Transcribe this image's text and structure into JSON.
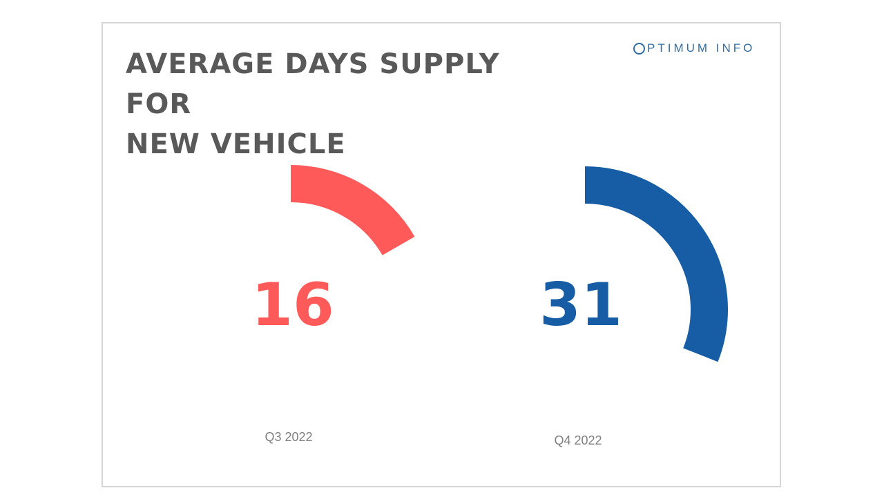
{
  "slide": {
    "title_lines": [
      "AVERAGE DAYS SUPPLY FOR",
      "NEW VEHICLE"
    ],
    "logo_text": "PTIMUM INFO"
  },
  "chart_data": {
    "type": "gauge",
    "title": "AVERAGE DAYS SUPPLY FOR NEW VEHICLE",
    "items": [
      {
        "label": "Q3 2022",
        "value": 16,
        "fraction": 0.167,
        "color": "#ff5a5a"
      },
      {
        "label": "Q4 2022",
        "value": 31,
        "fraction": 0.31,
        "color": "#165da6"
      }
    ]
  }
}
